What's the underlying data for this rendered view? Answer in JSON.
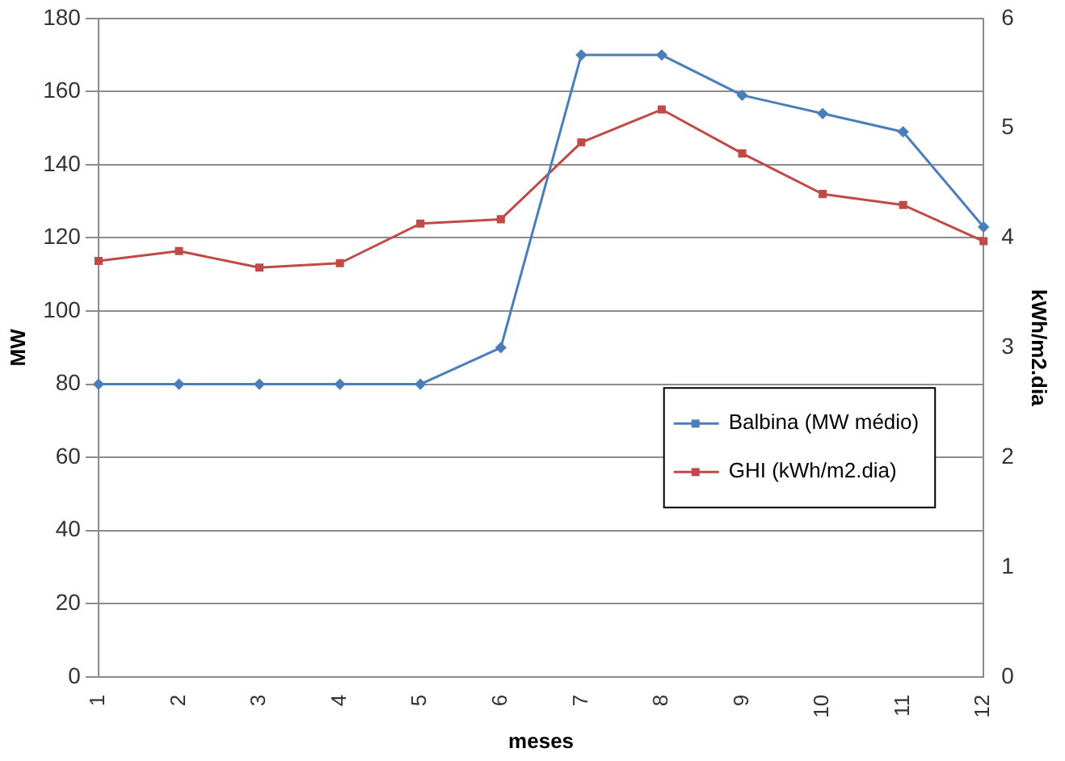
{
  "chart_data": {
    "type": "line",
    "xlabel": "meses",
    "ylabel": "MW",
    "y2label": "kWh/m2.dia",
    "categories": [
      "1",
      "2",
      "3",
      "4",
      "5",
      "6",
      "7",
      "8",
      "9",
      "10",
      "11",
      "12"
    ],
    "series": [
      {
        "name": "Balbina (MW médio)",
        "color": "#4a7ebb",
        "marker": "diamond",
        "values": [
          80,
          80,
          80,
          80,
          80,
          90,
          170,
          170,
          159,
          154,
          149,
          123
        ]
      },
      {
        "name": "GHI (kWh/m2.dia)",
        "color": "#be4b48",
        "marker": "square",
        "axis": "y2",
        "values": [
          3.79,
          3.88,
          3.73,
          3.77,
          4.13,
          4.17,
          4.87,
          5.17,
          4.77,
          4.4,
          4.3,
          3.97
        ]
      }
    ],
    "ylim": [
      0,
      180
    ],
    "yticks": [
      0,
      20,
      40,
      60,
      80,
      100,
      120,
      140,
      160,
      180
    ],
    "y2lim": [
      0,
      6
    ],
    "y2ticks": [
      0,
      1,
      2,
      3,
      4,
      5,
      6
    ],
    "grid": "y",
    "legend": "right",
    "line_style": "solid"
  }
}
